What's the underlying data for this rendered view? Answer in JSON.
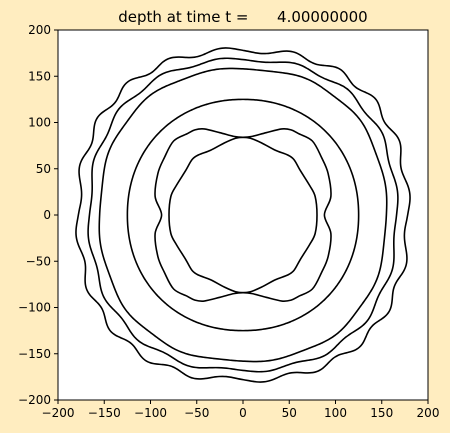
{
  "chart_data": {
    "type": "line",
    "title": "depth at time t =      4.00000000",
    "xlabel": "",
    "ylabel": "",
    "xlim": [
      -200,
      200
    ],
    "ylim": [
      -200,
      200
    ],
    "xticks": [
      -200,
      -150,
      -100,
      -50,
      0,
      50,
      100,
      150,
      200
    ],
    "yticks": [
      -200,
      -150,
      -100,
      -50,
      0,
      50,
      100,
      150,
      200
    ],
    "xtick_labels": [
      "−200",
      "−150",
      "−100",
      "−50",
      "0",
      "50",
      "100",
      "150",
      "200"
    ],
    "ytick_labels": [
      "−200",
      "−150",
      "−100",
      "−50",
      "0",
      "50",
      "100",
      "150",
      "200"
    ],
    "grid": false,
    "line_color": "#000000",
    "plot_background": "#ffffff",
    "figure_background": "#ffedc0",
    "contours": [
      {
        "shape": "superellipse",
        "rx": 178,
        "ry": 178,
        "n": 2.35,
        "wobble": 3,
        "k": 20
      },
      {
        "shape": "superellipse",
        "rx": 166,
        "ry": 168,
        "n": 2.3,
        "wobble": 2,
        "k": 16
      },
      {
        "shape": "superellipse",
        "rx": 155,
        "ry": 158,
        "n": 2.25,
        "wobble": 1,
        "k": 12
      },
      {
        "shape": "superellipse",
        "rx": 125,
        "ry": 125,
        "n": 2.1,
        "wobble": 0,
        "k": 0
      },
      {
        "shape": "lobed",
        "points": [
          [
            88,
            0
          ],
          [
            95,
            20
          ],
          [
            92,
            45
          ],
          [
            85,
            62
          ],
          [
            75,
            80
          ],
          [
            60,
            88
          ],
          [
            52,
            92
          ],
          [
            42,
            93
          ],
          [
            25,
            89
          ],
          [
            10,
            85
          ],
          [
            0,
            84
          ],
          [
            -10,
            85
          ],
          [
            -25,
            89
          ],
          [
            -42,
            93
          ],
          [
            -52,
            92
          ],
          [
            -60,
            88
          ],
          [
            -75,
            80
          ],
          [
            -85,
            62
          ],
          [
            -92,
            45
          ],
          [
            -95,
            20
          ],
          [
            -88,
            0
          ],
          [
            -95,
            -20
          ],
          [
            -92,
            -45
          ],
          [
            -85,
            -62
          ],
          [
            -75,
            -80
          ],
          [
            -60,
            -88
          ],
          [
            -52,
            -92
          ],
          [
            -42,
            -93
          ],
          [
            -25,
            -89
          ],
          [
            -10,
            -85
          ],
          [
            0,
            -84
          ],
          [
            10,
            -85
          ],
          [
            25,
            -89
          ],
          [
            42,
            -93
          ],
          [
            52,
            -92
          ],
          [
            60,
            -88
          ],
          [
            75,
            -80
          ],
          [
            85,
            -62
          ],
          [
            92,
            -45
          ],
          [
            95,
            -20
          ]
        ]
      },
      {
        "shape": "lobed",
        "points": [
          [
            80,
            0
          ],
          [
            78,
            20
          ],
          [
            72,
            32
          ],
          [
            62,
            48
          ],
          [
            55,
            60
          ],
          [
            48,
            65
          ],
          [
            35,
            70
          ],
          [
            20,
            78
          ],
          [
            8,
            83
          ],
          [
            0,
            84
          ],
          [
            -8,
            83
          ],
          [
            -20,
            78
          ],
          [
            -35,
            70
          ],
          [
            -48,
            65
          ],
          [
            -55,
            60
          ],
          [
            -62,
            48
          ],
          [
            -72,
            32
          ],
          [
            -78,
            20
          ],
          [
            -80,
            0
          ],
          [
            -78,
            -20
          ],
          [
            -72,
            -32
          ],
          [
            -62,
            -48
          ],
          [
            -55,
            -60
          ],
          [
            -48,
            -65
          ],
          [
            -35,
            -70
          ],
          [
            -20,
            -78
          ],
          [
            -8,
            -83
          ],
          [
            0,
            -84
          ],
          [
            8,
            -83
          ],
          [
            20,
            -78
          ],
          [
            35,
            -70
          ],
          [
            48,
            -65
          ],
          [
            55,
            -60
          ],
          [
            62,
            -48
          ],
          [
            72,
            -32
          ],
          [
            78,
            -20
          ]
        ]
      }
    ]
  }
}
